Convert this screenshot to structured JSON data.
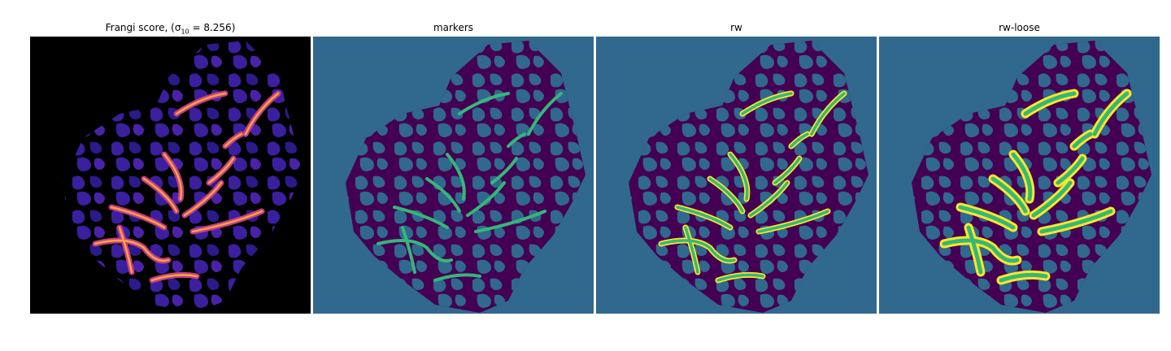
{
  "panels": [
    {
      "title_text": "Frangi score, ",
      "title_math": "(σ",
      "title_sub": "10",
      "title_rest": " = 8.256)"
    },
    {
      "title": "markers"
    },
    {
      "title": "rw"
    },
    {
      "title": "rw-loose"
    }
  ],
  "colors": {
    "background_blue": "#31688e",
    "tissue_purple": "#440154",
    "marker_green": "#35b779",
    "vessel_yellow": "#fde725",
    "frangi_black": "#000000",
    "frangi_blue": "#3b1f9e",
    "frangi_magenta": "#c43c8b",
    "frangi_orange": "#fca636"
  }
}
